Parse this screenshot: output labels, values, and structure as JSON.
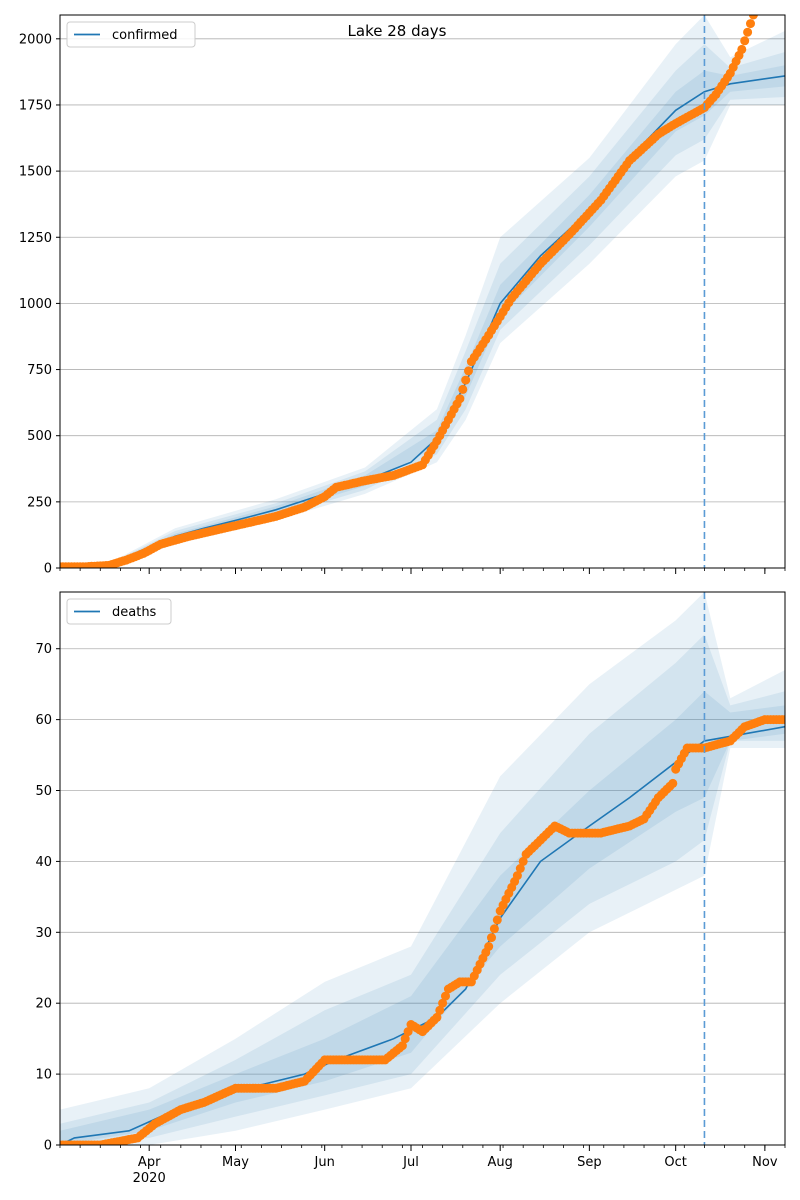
{
  "figure": {
    "title": "Lake 28 days"
  },
  "chart_data": [
    {
      "type": "line",
      "name": "confirmed-panel",
      "legend": "confirmed",
      "legend_placement": "top-left",
      "x_range": [
        "2020-03-01",
        "2020-11-08"
      ],
      "ylim": [
        0,
        2090
      ],
      "yticks": [
        0,
        250,
        500,
        750,
        1000,
        1250,
        1500,
        1750,
        2000
      ],
      "grid": "horizontal",
      "cutoff_date": "2020-10-11",
      "colors": {
        "model": "#1f77b4",
        "observed": "#ff7f0e",
        "band": "#1f77b4",
        "cutoff": "#5b9bd5"
      },
      "model_median": [
        [
          "2020-03-01",
          0
        ],
        [
          "2020-03-10",
          2
        ],
        [
          "2020-03-20",
          20
        ],
        [
          "2020-03-30",
          70
        ],
        [
          "2020-04-10",
          120
        ],
        [
          "2020-04-20",
          150
        ],
        [
          "2020-05-01",
          180
        ],
        [
          "2020-05-15",
          220
        ],
        [
          "2020-06-01",
          280
        ],
        [
          "2020-06-15",
          330
        ],
        [
          "2020-07-01",
          400
        ],
        [
          "2020-07-10",
          490
        ],
        [
          "2020-07-20",
          700
        ],
        [
          "2020-08-01",
          1000
        ],
        [
          "2020-08-15",
          1180
        ],
        [
          "2020-09-01",
          1350
        ],
        [
          "2020-09-15",
          1550
        ],
        [
          "2020-10-01",
          1730
        ],
        [
          "2020-10-11",
          1800
        ],
        [
          "2020-10-20",
          1830
        ],
        [
          "2020-11-08",
          1860
        ]
      ],
      "band_95": [
        [
          "2020-03-01",
          0,
          0
        ],
        [
          "2020-03-20",
          10,
          30
        ],
        [
          "2020-04-10",
          90,
          150
        ],
        [
          "2020-05-15",
          180,
          260
        ],
        [
          "2020-06-15",
          280,
          380
        ],
        [
          "2020-07-10",
          400,
          600
        ],
        [
          "2020-07-20",
          560,
          880
        ],
        [
          "2020-08-01",
          850,
          1250
        ],
        [
          "2020-09-01",
          1150,
          1550
        ],
        [
          "2020-10-01",
          1480,
          1980
        ],
        [
          "2020-10-11",
          1540,
          2090
        ],
        [
          "2020-10-20",
          1750,
          1930
        ],
        [
          "2020-11-08",
          1750,
          2030
        ]
      ],
      "band_80": [
        [
          "2020-03-01",
          0,
          0
        ],
        [
          "2020-03-20",
          13,
          26
        ],
        [
          "2020-04-10",
          100,
          140
        ],
        [
          "2020-05-15",
          195,
          245
        ],
        [
          "2020-06-15",
          295,
          365
        ],
        [
          "2020-07-10",
          430,
          560
        ],
        [
          "2020-07-20",
          600,
          820
        ],
        [
          "2020-08-01",
          900,
          1150
        ],
        [
          "2020-09-01",
          1220,
          1480
        ],
        [
          "2020-10-01",
          1560,
          1880
        ],
        [
          "2020-10-11",
          1620,
          1980
        ],
        [
          "2020-10-20",
          1770,
          1890
        ],
        [
          "2020-11-08",
          1780,
          1950
        ]
      ],
      "band_50": [
        [
          "2020-03-01",
          0,
          0
        ],
        [
          "2020-03-20",
          16,
          23
        ],
        [
          "2020-04-10",
          110,
          130
        ],
        [
          "2020-05-15",
          207,
          233
        ],
        [
          "2020-06-15",
          310,
          350
        ],
        [
          "2020-07-10",
          460,
          520
        ],
        [
          "2020-07-20",
          650,
          760
        ],
        [
          "2020-08-01",
          950,
          1070
        ],
        [
          "2020-09-01",
          1290,
          1410
        ],
        [
          "2020-10-01",
          1650,
          1800
        ],
        [
          "2020-10-11",
          1710,
          1880
        ],
        [
          "2020-10-20",
          1800,
          1860
        ],
        [
          "2020-11-08",
          1820,
          1900
        ]
      ],
      "observed": [
        [
          "2020-03-01",
          5
        ],
        [
          "2020-03-10",
          5
        ],
        [
          "2020-03-18",
          10
        ],
        [
          "2020-03-24",
          30
        ],
        [
          "2020-03-30",
          55
        ],
        [
          "2020-04-05",
          90
        ],
        [
          "2020-04-15",
          120
        ],
        [
          "2020-04-25",
          145
        ],
        [
          "2020-05-05",
          170
        ],
        [
          "2020-05-15",
          195
        ],
        [
          "2020-05-25",
          230
        ],
        [
          "2020-06-01",
          270
        ],
        [
          "2020-06-05",
          305
        ],
        [
          "2020-06-15",
          330
        ],
        [
          "2020-06-25",
          350
        ],
        [
          "2020-07-05",
          390
        ],
        [
          "2020-07-10",
          480
        ],
        [
          "2020-07-18",
          640
        ],
        [
          "2020-07-22",
          780
        ],
        [
          "2020-07-28",
          880
        ],
        [
          "2020-08-05",
          1020
        ],
        [
          "2020-08-15",
          1150
        ],
        [
          "2020-08-25",
          1260
        ],
        [
          "2020-09-05",
          1390
        ],
        [
          "2020-09-15",
          1540
        ],
        [
          "2020-09-25",
          1640
        ],
        [
          "2020-10-01",
          1680
        ],
        [
          "2020-10-11",
          1740
        ],
        [
          "2020-10-15",
          1790
        ],
        [
          "2020-10-20",
          1870
        ],
        [
          "2020-10-24",
          1960
        ],
        [
          "2020-10-28",
          2090
        ]
      ]
    },
    {
      "type": "line",
      "name": "deaths-panel",
      "legend": "deaths",
      "legend_placement": "top-left",
      "x_range": [
        "2020-03-01",
        "2020-11-08"
      ],
      "ylim": [
        0,
        78
      ],
      "yticks": [
        0,
        10,
        20,
        30,
        40,
        50,
        60,
        70
      ],
      "xticks": [
        "Apr",
        "May",
        "Jun",
        "Jul",
        "Aug",
        "Sep",
        "Oct",
        "Nov"
      ],
      "xtick_dates": [
        "2020-04-01",
        "2020-05-01",
        "2020-06-01",
        "2020-07-01",
        "2020-08-01",
        "2020-09-01",
        "2020-10-01",
        "2020-11-01"
      ],
      "year_label": "2020",
      "grid": "horizontal",
      "cutoff_date": "2020-10-11",
      "colors": {
        "model": "#1f77b4",
        "observed": "#ff7f0e",
        "band": "#1f77b4",
        "cutoff": "#5b9bd5"
      },
      "model_median": [
        [
          "2020-03-01",
          0
        ],
        [
          "2020-03-06",
          1
        ],
        [
          "2020-03-25",
          2
        ],
        [
          "2020-04-05",
          4
        ],
        [
          "2020-04-20",
          6
        ],
        [
          "2020-05-05",
          8
        ],
        [
          "2020-05-25",
          10
        ],
        [
          "2020-06-05",
          12
        ],
        [
          "2020-06-25",
          15
        ],
        [
          "2020-07-10",
          18
        ],
        [
          "2020-07-20",
          22
        ],
        [
          "2020-08-01",
          32
        ],
        [
          "2020-08-15",
          40
        ],
        [
          "2020-09-01",
          45
        ],
        [
          "2020-09-15",
          49
        ],
        [
          "2020-10-01",
          54
        ],
        [
          "2020-10-11",
          57
        ],
        [
          "2020-10-25",
          58
        ],
        [
          "2020-11-08",
          59
        ]
      ],
      "band_95": [
        [
          "2020-03-01",
          0,
          5
        ],
        [
          "2020-04-01",
          0,
          8
        ],
        [
          "2020-05-01",
          2,
          15
        ],
        [
          "2020-06-01",
          5,
          23
        ],
        [
          "2020-07-01",
          8,
          28
        ],
        [
          "2020-08-01",
          20,
          52
        ],
        [
          "2020-09-01",
          30,
          65
        ],
        [
          "2020-10-01",
          36,
          74
        ],
        [
          "2020-10-11",
          38,
          78
        ],
        [
          "2020-10-20",
          56,
          63
        ],
        [
          "2020-11-08",
          56,
          67
        ]
      ],
      "band_80": [
        [
          "2020-03-01",
          0,
          3
        ],
        [
          "2020-04-01",
          1,
          6
        ],
        [
          "2020-05-01",
          4,
          12
        ],
        [
          "2020-06-01",
          7,
          19
        ],
        [
          "2020-07-01",
          10,
          24
        ],
        [
          "2020-08-01",
          24,
          44
        ],
        [
          "2020-09-01",
          34,
          58
        ],
        [
          "2020-10-01",
          40,
          68
        ],
        [
          "2020-10-11",
          43,
          72
        ],
        [
          "2020-10-20",
          57,
          62
        ],
        [
          "2020-11-08",
          57,
          64
        ]
      ],
      "band_50": [
        [
          "2020-03-01",
          0,
          2
        ],
        [
          "2020-04-01",
          2,
          5
        ],
        [
          "2020-05-01",
          6,
          10
        ],
        [
          "2020-06-01",
          9,
          15
        ],
        [
          "2020-07-01",
          13,
          21
        ],
        [
          "2020-08-01",
          28,
          38
        ],
        [
          "2020-09-01",
          39,
          50
        ],
        [
          "2020-10-01",
          47,
          60
        ],
        [
          "2020-10-11",
          49,
          64
        ],
        [
          "2020-10-20",
          57,
          61
        ],
        [
          "2020-11-08",
          58,
          62
        ]
      ],
      "observed": [
        [
          "2020-03-01",
          0
        ],
        [
          "2020-03-15",
          0
        ],
        [
          "2020-03-28",
          1
        ],
        [
          "2020-04-03",
          3
        ],
        [
          "2020-04-12",
          5
        ],
        [
          "2020-04-20",
          6
        ],
        [
          "2020-05-01",
          8
        ],
        [
          "2020-05-15",
          8
        ],
        [
          "2020-05-25",
          9
        ],
        [
          "2020-06-01",
          12
        ],
        [
          "2020-06-15",
          12
        ],
        [
          "2020-06-22",
          12
        ],
        [
          "2020-06-28",
          14
        ],
        [
          "2020-07-01",
          17
        ],
        [
          "2020-07-05",
          16
        ],
        [
          "2020-07-10",
          18
        ],
        [
          "2020-07-14",
          22
        ],
        [
          "2020-07-18",
          23
        ],
        [
          "2020-07-22",
          23
        ],
        [
          "2020-07-28",
          28
        ],
        [
          "2020-08-01",
          33
        ],
        [
          "2020-08-07",
          38
        ],
        [
          "2020-08-10",
          41
        ],
        [
          "2020-08-15",
          43
        ],
        [
          "2020-08-20",
          45
        ],
        [
          "2020-08-25",
          44
        ],
        [
          "2020-09-05",
          44
        ],
        [
          "2020-09-15",
          45
        ],
        [
          "2020-09-20",
          46
        ],
        [
          "2020-09-25",
          49
        ],
        [
          "2020-09-30",
          51
        ],
        [
          "2020-10-01",
          53
        ],
        [
          "2020-10-05",
          56
        ],
        [
          "2020-10-11",
          56
        ],
        [
          "2020-10-20",
          57
        ],
        [
          "2020-10-25",
          59
        ],
        [
          "2020-11-01",
          60
        ],
        [
          "2020-11-08",
          60
        ]
      ]
    }
  ]
}
